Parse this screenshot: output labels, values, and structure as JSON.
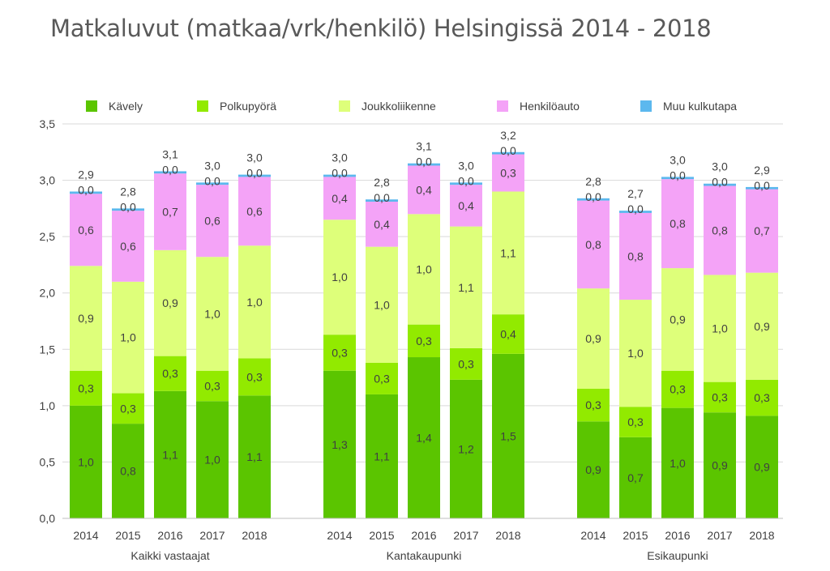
{
  "chart_data": {
    "type": "bar",
    "stacked": true,
    "title": "Matkaluvut (matkaa/vrk/henkilö) Helsingissä 2014 - 2018",
    "ylim": [
      0,
      3.5
    ],
    "yticks": [
      "0,0",
      "0,5",
      "1,0",
      "1,5",
      "2,0",
      "2,5",
      "3,0",
      "3,5"
    ],
    "grid": true,
    "legend_position": "top",
    "series": [
      {
        "name": "Kävely",
        "color": "#5bc500"
      },
      {
        "name": "Polkupyörä",
        "color": "#92ea00"
      },
      {
        "name": "Joukkoliikenne",
        "color": "#deff7a"
      },
      {
        "name": "Henkilöauto",
        "color": "#f4a3f7"
      },
      {
        "name": "Muu kulkutapa",
        "color": "#5cb8ee"
      }
    ],
    "groups": [
      {
        "label": "Kaikki vastaajat",
        "bars": [
          {
            "year": "2014",
            "values": [
              1.0,
              0.31,
              0.93,
              0.64,
              0.02
            ],
            "labels": [
              "1,0",
              "0,3",
              "0,9",
              "0,6",
              "0,0"
            ],
            "total": "2,9"
          },
          {
            "year": "2015",
            "values": [
              0.84,
              0.27,
              0.99,
              0.63,
              0.02
            ],
            "labels": [
              "0,8",
              "0,3",
              "1,0",
              "0,6",
              "0,0"
            ],
            "total": "2,8"
          },
          {
            "year": "2016",
            "values": [
              1.13,
              0.31,
              0.94,
              0.68,
              0.02
            ],
            "labels": [
              "1,1",
              "0,3",
              "0,9",
              "0,7",
              "0,0"
            ],
            "total": "3,1"
          },
          {
            "year": "2017",
            "values": [
              1.04,
              0.27,
              1.01,
              0.64,
              0.02
            ],
            "labels": [
              "1,0",
              "0,3",
              "1,0",
              "0,6",
              "0,0"
            ],
            "total": "3,0"
          },
          {
            "year": "2018",
            "values": [
              1.09,
              0.33,
              1.0,
              0.61,
              0.02
            ],
            "labels": [
              "1,1",
              "0,3",
              "1,0",
              "0,6",
              "0,0"
            ],
            "total": "3,0"
          }
        ]
      },
      {
        "label": "Kantakaupunki",
        "bars": [
          {
            "year": "2014",
            "values": [
              1.31,
              0.32,
              1.02,
              0.38,
              0.02
            ],
            "labels": [
              "1,3",
              "0,3",
              "1,0",
              "0,4",
              "0,0"
            ],
            "total": "3,0"
          },
          {
            "year": "2015",
            "values": [
              1.1,
              0.28,
              1.03,
              0.4,
              0.02
            ],
            "labels": [
              "1,1",
              "0,3",
              "1,0",
              "0,4",
              "0,0"
            ],
            "total": "2,8"
          },
          {
            "year": "2016",
            "values": [
              1.43,
              0.29,
              0.98,
              0.43,
              0.02
            ],
            "labels": [
              "1,4",
              "0,3",
              "1,0",
              "0,4",
              "0,0"
            ],
            "total": "3,1"
          },
          {
            "year": "2017",
            "values": [
              1.23,
              0.28,
              1.08,
              0.37,
              0.02
            ],
            "labels": [
              "1,2",
              "0,3",
              "1,1",
              "0,4",
              "0,0"
            ],
            "total": "3,0"
          },
          {
            "year": "2018",
            "values": [
              1.46,
              0.35,
              1.09,
              0.33,
              0.02
            ],
            "labels": [
              "1,5",
              "0,4",
              "1,1",
              "0,3",
              "0,0"
            ],
            "total": "3,2"
          }
        ]
      },
      {
        "label": "Esikaupunki",
        "bars": [
          {
            "year": "2014",
            "values": [
              0.86,
              0.29,
              0.89,
              0.78,
              0.02
            ],
            "labels": [
              "0,9",
              "0,3",
              "0,9",
              "0,8",
              "0,0"
            ],
            "total": "2,8"
          },
          {
            "year": "2015",
            "values": [
              0.72,
              0.27,
              0.95,
              0.77,
              0.02
            ],
            "labels": [
              "0,7",
              "0,3",
              "1,0",
              "0,8",
              "0,0"
            ],
            "total": "2,7"
          },
          {
            "year": "2016",
            "values": [
              0.98,
              0.33,
              0.91,
              0.79,
              0.02
            ],
            "labels": [
              "1,0",
              "0,3",
              "0,9",
              "0,8",
              "0,0"
            ],
            "total": "3,0"
          },
          {
            "year": "2017",
            "values": [
              0.94,
              0.27,
              0.95,
              0.79,
              0.02
            ],
            "labels": [
              "0,9",
              "0,3",
              "1,0",
              "0,8",
              "0,0"
            ],
            "total": "3,0"
          },
          {
            "year": "2018",
            "values": [
              0.91,
              0.32,
              0.95,
              0.74,
              0.02
            ],
            "labels": [
              "0,9",
              "0,3",
              "0,9",
              "0,7",
              "0,0"
            ],
            "total": "2,9"
          }
        ]
      }
    ]
  }
}
